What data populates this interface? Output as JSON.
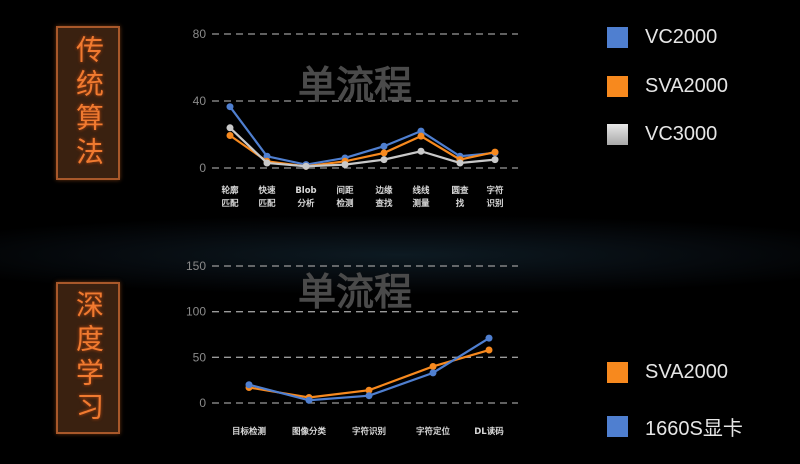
{
  "side_labels": {
    "top": "传统算法",
    "bottom": "深度学习"
  },
  "colors": {
    "blue": "#4f7fd0",
    "orange": "#f7891e",
    "gray": "#c9c9c9"
  },
  "chart_data": [
    {
      "type": "line",
      "watermark": "单流程",
      "categories": [
        [
          "轮廓",
          "匹配"
        ],
        [
          "快速",
          "匹配"
        ],
        [
          "Blob",
          "分析"
        ],
        [
          "间距",
          "检测"
        ],
        [
          "边缘",
          "查找"
        ],
        [
          "线线",
          "测量"
        ],
        [
          "圆查",
          "找"
        ],
        [
          "字符",
          "识别"
        ]
      ],
      "ylim": [
        0,
        80
      ],
      "yticks": [
        "0",
        "40",
        "80"
      ],
      "grid": true,
      "legend_position": "right",
      "series": [
        {
          "name": "VC2000",
          "color": "#4f7fd0",
          "values": [
            36.6,
            7,
            2,
            6,
            13,
            22,
            7,
            9
          ]
        },
        {
          "name": "SVA2000",
          "color": "#f7891e",
          "values": [
            19.4,
            4,
            1,
            4,
            9,
            19,
            5,
            9.5
          ]
        },
        {
          "name": "VC3000",
          "color": "#c9c9c9",
          "values": [
            24,
            3,
            1,
            2,
            5,
            10,
            3,
            5
          ]
        }
      ]
    },
    {
      "type": "line",
      "watermark": "单流程",
      "categories": [
        [
          "目标检测"
        ],
        [
          "图像分类"
        ],
        [
          "字符识别"
        ],
        [
          "字符定位"
        ],
        [
          "DL读码"
        ]
      ],
      "ylim": [
        0,
        150
      ],
      "yticks": [
        "0",
        "50",
        "100",
        "150"
      ],
      "grid": true,
      "legend_position": "right",
      "series": [
        {
          "name": "SVA2000",
          "color": "#f7891e",
          "values": [
            17,
            6,
            14,
            40,
            58
          ]
        },
        {
          "name": "1660S显卡",
          "color": "#4f7fd0",
          "values": [
            20,
            3,
            8,
            33,
            71
          ]
        }
      ]
    }
  ]
}
